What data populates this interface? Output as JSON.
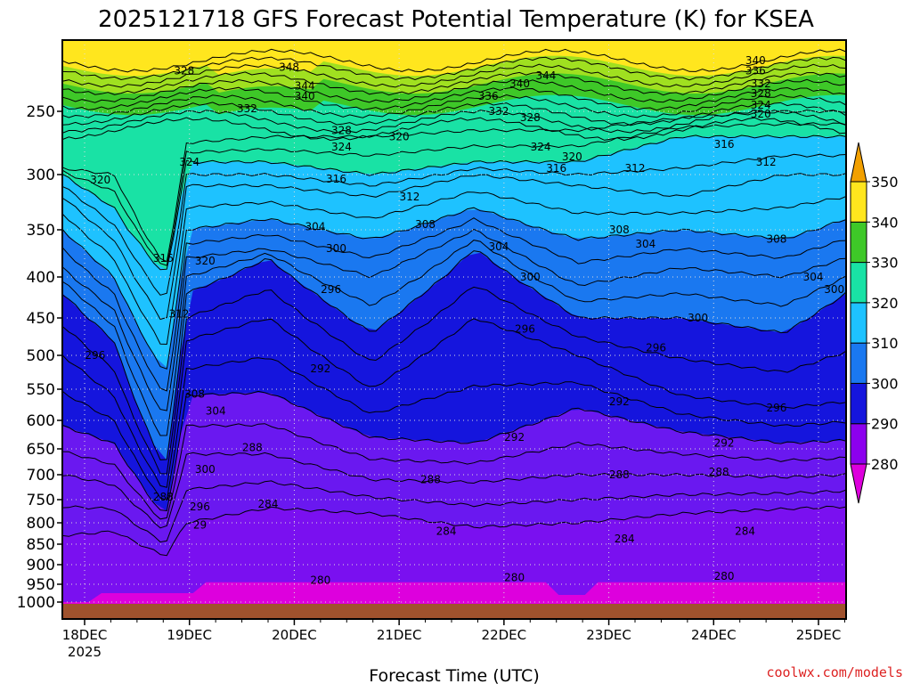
{
  "chart_data": {
    "type": "heatmap",
    "title": "2025121718 GFS Forecast Potential Temperature (K) for KSEA",
    "xlabel": "Forecast Time (UTC)",
    "ylabel": "Pressure (hPa)",
    "x_ticks": [
      "18DEC",
      "19DEC",
      "20DEC",
      "21DEC",
      "22DEC",
      "23DEC",
      "24DEC",
      "25DEC"
    ],
    "x_tick_sublabel": "2025",
    "x_range_days": [
      0,
      7.6
    ],
    "y_ticks": [
      250,
      300,
      350,
      400,
      450,
      500,
      550,
      600,
      650,
      700,
      750,
      800,
      850,
      900,
      950,
      1000
    ],
    "ylim": [
      1000,
      200
    ],
    "colorbar": {
      "levels": [
        280,
        290,
        300,
        310,
        320,
        330,
        340,
        350
      ],
      "colors": [
        "#dd00dd",
        "#8c00ee",
        "#1515dd",
        "#1a78f0",
        "#1ec2ff",
        "#19e2a5",
        "#3ec828",
        "#ffe61e",
        "#f2a000"
      ]
    },
    "series": [
      {
        "name": "T 284K",
        "x": [
          0,
          0.5,
          1,
          1.2,
          2,
          3,
          4,
          5,
          6,
          7,
          7.6
        ],
        "values": [
          830,
          820,
          880,
          800,
          768,
          780,
          810,
          800,
          780,
          770,
          765
        ]
      },
      {
        "name": "T 288K",
        "x": [
          0,
          0.5,
          1,
          1.2,
          2,
          3,
          4,
          5,
          6,
          7,
          7.6
        ],
        "values": [
          700,
          720,
          820,
          660,
          660,
          710,
          715,
          700,
          700,
          705,
          700
        ]
      },
      {
        "name": "T 292K",
        "x": [
          0,
          0.5,
          1,
          1.2,
          2,
          3,
          4,
          5,
          6,
          7,
          7.6
        ],
        "values": [
          610,
          640,
          790,
          560,
          555,
          630,
          640,
          580,
          620,
          640,
          635
        ]
      },
      {
        "name": "T 296K",
        "x": [
          0,
          0.5,
          1,
          1.2,
          2,
          3,
          4,
          5,
          6,
          7,
          7.6
        ],
        "values": [
          500,
          560,
          740,
          480,
          450,
          550,
          450,
          500,
          560,
          580,
          570
        ]
      },
      {
        "name": "T 300K",
        "x": [
          0,
          0.5,
          1,
          1.2,
          2,
          3,
          4,
          5,
          6,
          7,
          7.6
        ],
        "values": [
          420,
          480,
          690,
          420,
          380,
          470,
          370,
          450,
          450,
          470,
          420
        ]
      },
      {
        "name": "T 304K",
        "x": [
          0,
          0.5,
          1,
          1.2,
          2,
          3,
          4,
          5,
          6,
          7,
          7.6
        ],
        "values": [
          390,
          440,
          600,
          380,
          370,
          400,
          350,
          410,
          390,
          400,
          380
        ]
      },
      {
        "name": "T 308K",
        "x": [
          0,
          0.5,
          1,
          1.2,
          2,
          3,
          4,
          5,
          6,
          7,
          7.6
        ],
        "values": [
          350,
          400,
          530,
          350,
          340,
          360,
          330,
          360,
          350,
          360,
          340
        ]
      },
      {
        "name": "T 312K",
        "x": [
          0,
          0.5,
          1,
          1.2,
          2,
          3,
          4,
          5,
          6,
          7,
          7.6
        ],
        "values": [
          320,
          360,
          460,
          310,
          310,
          320,
          300,
          310,
          320,
          300,
          300
        ]
      },
      {
        "name": "T 316K",
        "x": [
          0,
          0.5,
          1,
          1.2,
          2,
          3,
          4,
          5,
          6,
          7,
          7.6
        ],
        "values": [
          300,
          330,
          400,
          290,
          290,
          300,
          290,
          290,
          270,
          270,
          270
        ]
      },
      {
        "name": "T 320K",
        "x": [
          0,
          0.5,
          1,
          1.2,
          2,
          3,
          4,
          5,
          6,
          7,
          7.6
        ],
        "values": [
          295,
          300,
          390,
          275,
          270,
          270,
          265,
          265,
          255,
          250,
          250
        ]
      }
    ]
  },
  "plot_labels": {
    "contours": [
      {
        "text": "348",
        "x": 1.95,
        "y": 215
      },
      {
        "text": "344",
        "x": 2.1,
        "y": 230
      },
      {
        "text": "340",
        "x": 2.1,
        "y": 238
      },
      {
        "text": "332",
        "x": 1.55,
        "y": 248
      },
      {
        "text": "328",
        "x": 0.95,
        "y": 218
      },
      {
        "text": "328",
        "x": 2.45,
        "y": 265
      },
      {
        "text": "324",
        "x": 2.45,
        "y": 278
      },
      {
        "text": "320",
        "x": 3.0,
        "y": 270
      },
      {
        "text": "324",
        "x": 1.0,
        "y": 290
      },
      {
        "text": "320",
        "x": 0.15,
        "y": 305
      },
      {
        "text": "316",
        "x": 2.4,
        "y": 304
      },
      {
        "text": "312",
        "x": 3.1,
        "y": 320
      },
      {
        "text": "316",
        "x": 0.75,
        "y": 380
      },
      {
        "text": "320",
        "x": 1.15,
        "y": 383
      },
      {
        "text": "312",
        "x": 0.9,
        "y": 445
      },
      {
        "text": "296",
        "x": 0.1,
        "y": 500
      },
      {
        "text": "308",
        "x": 1.05,
        "y": 558
      },
      {
        "text": "304",
        "x": 1.25,
        "y": 585
      },
      {
        "text": "300",
        "x": 1.15,
        "y": 690
      },
      {
        "text": "296",
        "x": 1.1,
        "y": 765
      },
      {
        "text": "29",
        "x": 1.1,
        "y": 805
      },
      {
        "text": "288",
        "x": 0.75,
        "y": 745
      },
      {
        "text": "284",
        "x": 1.75,
        "y": 760
      },
      {
        "text": "288",
        "x": 1.6,
        "y": 648
      },
      {
        "text": "292",
        "x": 2.25,
        "y": 520
      },
      {
        "text": "296",
        "x": 2.35,
        "y": 415
      },
      {
        "text": "300",
        "x": 2.4,
        "y": 370
      },
      {
        "text": "304",
        "x": 2.2,
        "y": 347
      },
      {
        "text": "308",
        "x": 3.25,
        "y": 345
      },
      {
        "text": "304",
        "x": 3.95,
        "y": 368
      },
      {
        "text": "300",
        "x": 4.25,
        "y": 400
      },
      {
        "text": "296",
        "x": 4.2,
        "y": 465
      },
      {
        "text": "292",
        "x": 4.1,
        "y": 630
      },
      {
        "text": "288",
        "x": 3.3,
        "y": 710
      },
      {
        "text": "284",
        "x": 3.45,
        "y": 820
      },
      {
        "text": "280",
        "x": 2.25,
        "y": 940
      },
      {
        "text": "280",
        "x": 4.1,
        "y": 933
      },
      {
        "text": "336",
        "x": 3.85,
        "y": 238
      },
      {
        "text": "340",
        "x": 4.15,
        "y": 228
      },
      {
        "text": "344",
        "x": 4.4,
        "y": 222
      },
      {
        "text": "332",
        "x": 3.95,
        "y": 250
      },
      {
        "text": "328",
        "x": 4.25,
        "y": 255
      },
      {
        "text": "324",
        "x": 4.35,
        "y": 278
      },
      {
        "text": "320",
        "x": 4.65,
        "y": 286
      },
      {
        "text": "316",
        "x": 4.5,
        "y": 295
      },
      {
        "text": "312",
        "x": 5.25,
        "y": 295
      },
      {
        "text": "308",
        "x": 5.1,
        "y": 350
      },
      {
        "text": "304",
        "x": 5.35,
        "y": 365
      },
      {
        "text": "300",
        "x": 5.85,
        "y": 450
      },
      {
        "text": "296",
        "x": 5.45,
        "y": 490
      },
      {
        "text": "292",
        "x": 5.1,
        "y": 570
      },
      {
        "text": "288",
        "x": 5.1,
        "y": 700
      },
      {
        "text": "284",
        "x": 5.15,
        "y": 837
      },
      {
        "text": "340",
        "x": 6.4,
        "y": 210
      },
      {
        "text": "336",
        "x": 6.4,
        "y": 218
      },
      {
        "text": "332",
        "x": 6.45,
        "y": 228
      },
      {
        "text": "328",
        "x": 6.45,
        "y": 236
      },
      {
        "text": "324",
        "x": 6.45,
        "y": 245
      },
      {
        "text": "320",
        "x": 6.45,
        "y": 252
      },
      {
        "text": "316",
        "x": 6.1,
        "y": 276
      },
      {
        "text": "312",
        "x": 6.5,
        "y": 290
      },
      {
        "text": "308",
        "x": 6.6,
        "y": 360
      },
      {
        "text": "304",
        "x": 6.95,
        "y": 400
      },
      {
        "text": "300",
        "x": 7.15,
        "y": 415
      },
      {
        "text": "296",
        "x": 6.6,
        "y": 580
      },
      {
        "text": "292",
        "x": 6.1,
        "y": 640
      },
      {
        "text": "288",
        "x": 6.05,
        "y": 695
      },
      {
        "text": "284",
        "x": 6.3,
        "y": 820
      },
      {
        "text": "280",
        "x": 6.1,
        "y": 930
      }
    ]
  },
  "credit": "coolwx.com/models"
}
